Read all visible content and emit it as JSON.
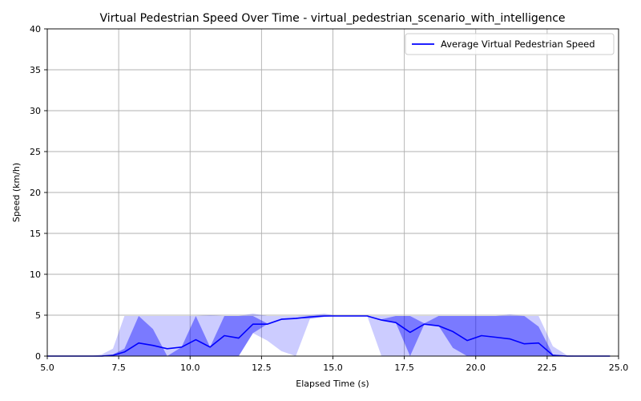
{
  "chart_data": {
    "type": "line",
    "title": "Virtual Pedestrian Speed Over Time - virtual_pedestrian_scenario_with_intelligence",
    "xlabel": "Elapsed Time (s)",
    "ylabel": "Speed (km/h)",
    "xlim": [
      5.0,
      25.0
    ],
    "ylim": [
      0,
      40
    ],
    "xticks": [
      "5.0",
      "7.5",
      "10.0",
      "12.5",
      "15.0",
      "17.5",
      "20.0",
      "22.5",
      "25.0"
    ],
    "yticks": [
      "0",
      "5",
      "10",
      "15",
      "20",
      "25",
      "30",
      "35",
      "40"
    ],
    "grid": true,
    "legend_position": "top-right",
    "series": [
      {
        "name": "Average Virtual Pedestrian Speed",
        "color": "#0000ff",
        "x": [
          5.0,
          5.5,
          6.0,
          6.5,
          6.9,
          7.3,
          7.7,
          8.2,
          8.7,
          9.2,
          9.7,
          10.2,
          10.7,
          11.2,
          11.7,
          12.2,
          12.7,
          13.2,
          13.7,
          14.2,
          14.7,
          15.2,
          15.7,
          16.2,
          16.7,
          17.2,
          17.7,
          18.2,
          18.7,
          19.2,
          19.7,
          20.2,
          20.7,
          21.2,
          21.7,
          22.2,
          22.7,
          23.2,
          23.7,
          24.2,
          24.7
        ],
        "values": [
          0,
          0,
          0,
          0,
          0,
          0.1,
          0.5,
          1.6,
          1.3,
          0.9,
          1.1,
          2.0,
          1.1,
          2.5,
          2.2,
          3.9,
          3.9,
          4.5,
          4.6,
          4.8,
          4.9,
          4.9,
          4.9,
          4.9,
          4.4,
          4.1,
          2.9,
          3.9,
          3.7,
          3.0,
          1.9,
          2.5,
          2.3,
          2.1,
          1.5,
          1.6,
          0.1,
          0,
          0,
          0,
          0
        ]
      }
    ],
    "bands": [
      {
        "color": "#0000ff",
        "opacity": 0.2,
        "x": [
          5.0,
          5.5,
          6.0,
          6.5,
          6.9,
          7.3,
          7.7,
          8.2,
          8.7,
          9.2,
          9.7,
          10.2,
          10.7,
          11.2,
          11.7,
          12.2,
          12.7,
          13.2,
          13.7,
          14.2,
          14.7,
          15.2,
          15.7,
          16.2,
          16.7,
          17.2,
          17.7,
          18.2,
          18.7,
          19.2,
          19.7,
          20.2,
          20.7,
          21.2,
          21.7,
          22.2,
          22.7,
          23.2,
          23.7,
          24.2,
          24.7
        ],
        "lower": [
          0,
          0,
          0,
          0,
          0,
          0,
          0,
          0,
          0,
          0,
          0,
          0,
          0,
          0,
          0,
          2.8,
          1.9,
          0.6,
          0,
          4.6,
          4.8,
          4.9,
          4.9,
          4.9,
          0,
          0,
          0,
          0,
          0,
          0,
          0,
          0,
          0,
          0,
          0,
          0,
          0,
          0,
          0,
          0,
          0
        ],
        "upper": [
          0,
          0,
          0,
          0,
          0.2,
          0.9,
          4.9,
          4.9,
          4.9,
          4.9,
          4.9,
          4.9,
          5.0,
          4.9,
          4.9,
          5.2,
          4.9,
          4.9,
          4.9,
          5.0,
          5.2,
          4.9,
          4.9,
          4.9,
          4.9,
          4.9,
          4.9,
          4.9,
          4.9,
          4.9,
          4.9,
          4.9,
          4.9,
          5.1,
          4.9,
          4.9,
          1.2,
          0.1,
          0,
          0,
          0
        ]
      },
      {
        "color": "#0000ff",
        "opacity": 0.4,
        "x": [
          5.0,
          5.5,
          6.0,
          6.5,
          6.9,
          7.3,
          7.7,
          8.2,
          8.7,
          9.2,
          9.7,
          10.2,
          10.7,
          11.2,
          11.7,
          12.2,
          12.7,
          13.2,
          13.7,
          14.2,
          14.7,
          15.2,
          15.7,
          16.2,
          16.7,
          17.2,
          17.7,
          18.2,
          18.7,
          19.2,
          19.7,
          20.2,
          20.7,
          21.2,
          21.7,
          22.2,
          22.7,
          23.2,
          23.7,
          24.2,
          24.7
        ],
        "lower": [
          0,
          0,
          0,
          0,
          0,
          0,
          0,
          0,
          0,
          0,
          0,
          0,
          0,
          0,
          0,
          2.8,
          3.9,
          4.5,
          4.6,
          4.6,
          4.8,
          4.9,
          4.9,
          4.9,
          4.4,
          4.1,
          0,
          3.9,
          3.7,
          1.0,
          0,
          0,
          0,
          0,
          0,
          0,
          0,
          0,
          0,
          0,
          0
        ],
        "upper": [
          0,
          0,
          0,
          0,
          0,
          0.2,
          0.9,
          4.9,
          3.3,
          0,
          1.1,
          4.9,
          1.1,
          4.9,
          4.9,
          4.9,
          4.0,
          4.6,
          4.7,
          4.8,
          4.9,
          4.9,
          4.9,
          4.9,
          4.5,
          4.9,
          4.9,
          4.0,
          4.9,
          4.9,
          4.9,
          4.9,
          4.9,
          4.9,
          4.9,
          3.6,
          0.2,
          0,
          0,
          0,
          0
        ]
      }
    ]
  }
}
